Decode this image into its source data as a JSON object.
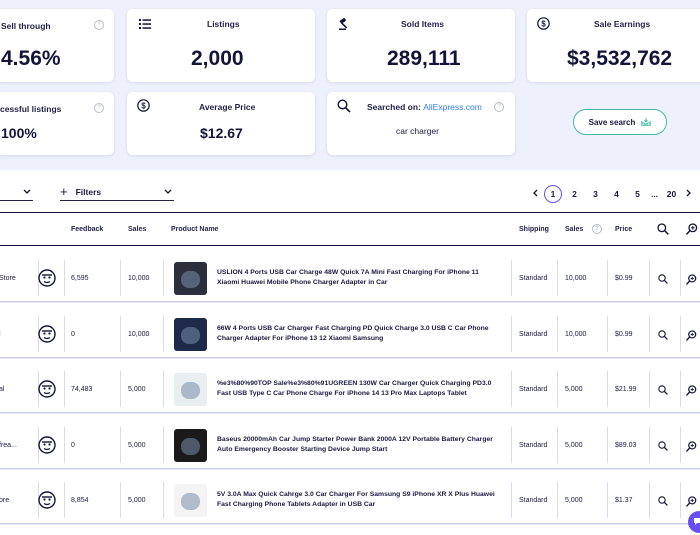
{
  "stats": {
    "sell_through": {
      "label": "Sell through",
      "value": "4.56%"
    },
    "listings": {
      "label": "Listings",
      "value": "2,000"
    },
    "sold_items": {
      "label": "Sold Items",
      "value": "289,111"
    },
    "sale_earnings": {
      "label": "Sale Earnings",
      "value": "$3,532,762"
    },
    "successful_listings": {
      "label": "cessful listings",
      "value": "100%"
    },
    "average_price": {
      "label": "Average Price",
      "value": "$12.67"
    },
    "searched_on": {
      "label": "Searched on:",
      "source": "AliExpress.com",
      "query": "car charger"
    }
  },
  "save_search_label": "Save search",
  "filters_label": "Filters",
  "pagination": {
    "pages": [
      "1",
      "2",
      "3",
      "4",
      "5"
    ],
    "ellipsis": "...",
    "last": "20",
    "current": "1"
  },
  "columns": {
    "feedback": "Feedback",
    "sales": "Sales",
    "product_name": "Product Name",
    "shipping": "Shipping",
    "sales2": "Sales",
    "price": "Price"
  },
  "rows": [
    {
      "store": "Store",
      "feedback": "6,595",
      "sales": "10,000",
      "name": "USLION 4 Ports USB Car Charge 48W Quick 7A Mini Fast Charging For iPhone 11 Xiaomi Huawei Mobile Phone Charger Adapter in Car",
      "shipping": "Standard",
      "sales2": "10,000",
      "price": "$0.99",
      "thumb": "#2b2f3c"
    },
    {
      "store": "l",
      "feedback": "0",
      "sales": "10,000",
      "name": "66W 4 Ports USB Car Charger Fast Charging PD Quick Charge 3.0 USB C Car Phone Charger Adapter For iPhone 13 12 Xiaomi Samsung",
      "shipping": "Standard",
      "sales2": "10,000",
      "price": "$0.99",
      "thumb": "#1d2a4a"
    },
    {
      "store": "al",
      "feedback": "74,483",
      "sales": "5,000",
      "name": "%e3%80%90TOP Sale%e3%80%91UGREEN 130W Car Charger Quick Charging PD3.0 Fast USB Type C Car Phone Charge For iPhone 14 13 Pro Max Laptops Tablet",
      "shipping": "Standard",
      "sales2": "5,000",
      "price": "$21.99",
      "thumb": "#e9eef0"
    },
    {
      "store": "frea...",
      "feedback": "0",
      "sales": "5,000",
      "name": "Baseus 20000mAh Car Jump Starter Power Bank 2000A 12V Portable Battery Charger Auto Emergency Booster Starting Device Jump Start",
      "shipping": "Standard",
      "sales2": "5,000",
      "price": "$89.03",
      "thumb": "#1a1a1a"
    },
    {
      "store": "ore",
      "feedback": "8,854",
      "sales": "5,000",
      "name": "5V 3.0A Max Quick Cahrge 3.0 Car Charger For Samsung S9 iPhone XR X Plus Huawei Fast Charging Phone Tablets Adapter in USB Car",
      "shipping": "Standard",
      "sales2": "5,000",
      "price": "$1.37",
      "thumb": "#f4f4f4"
    }
  ]
}
